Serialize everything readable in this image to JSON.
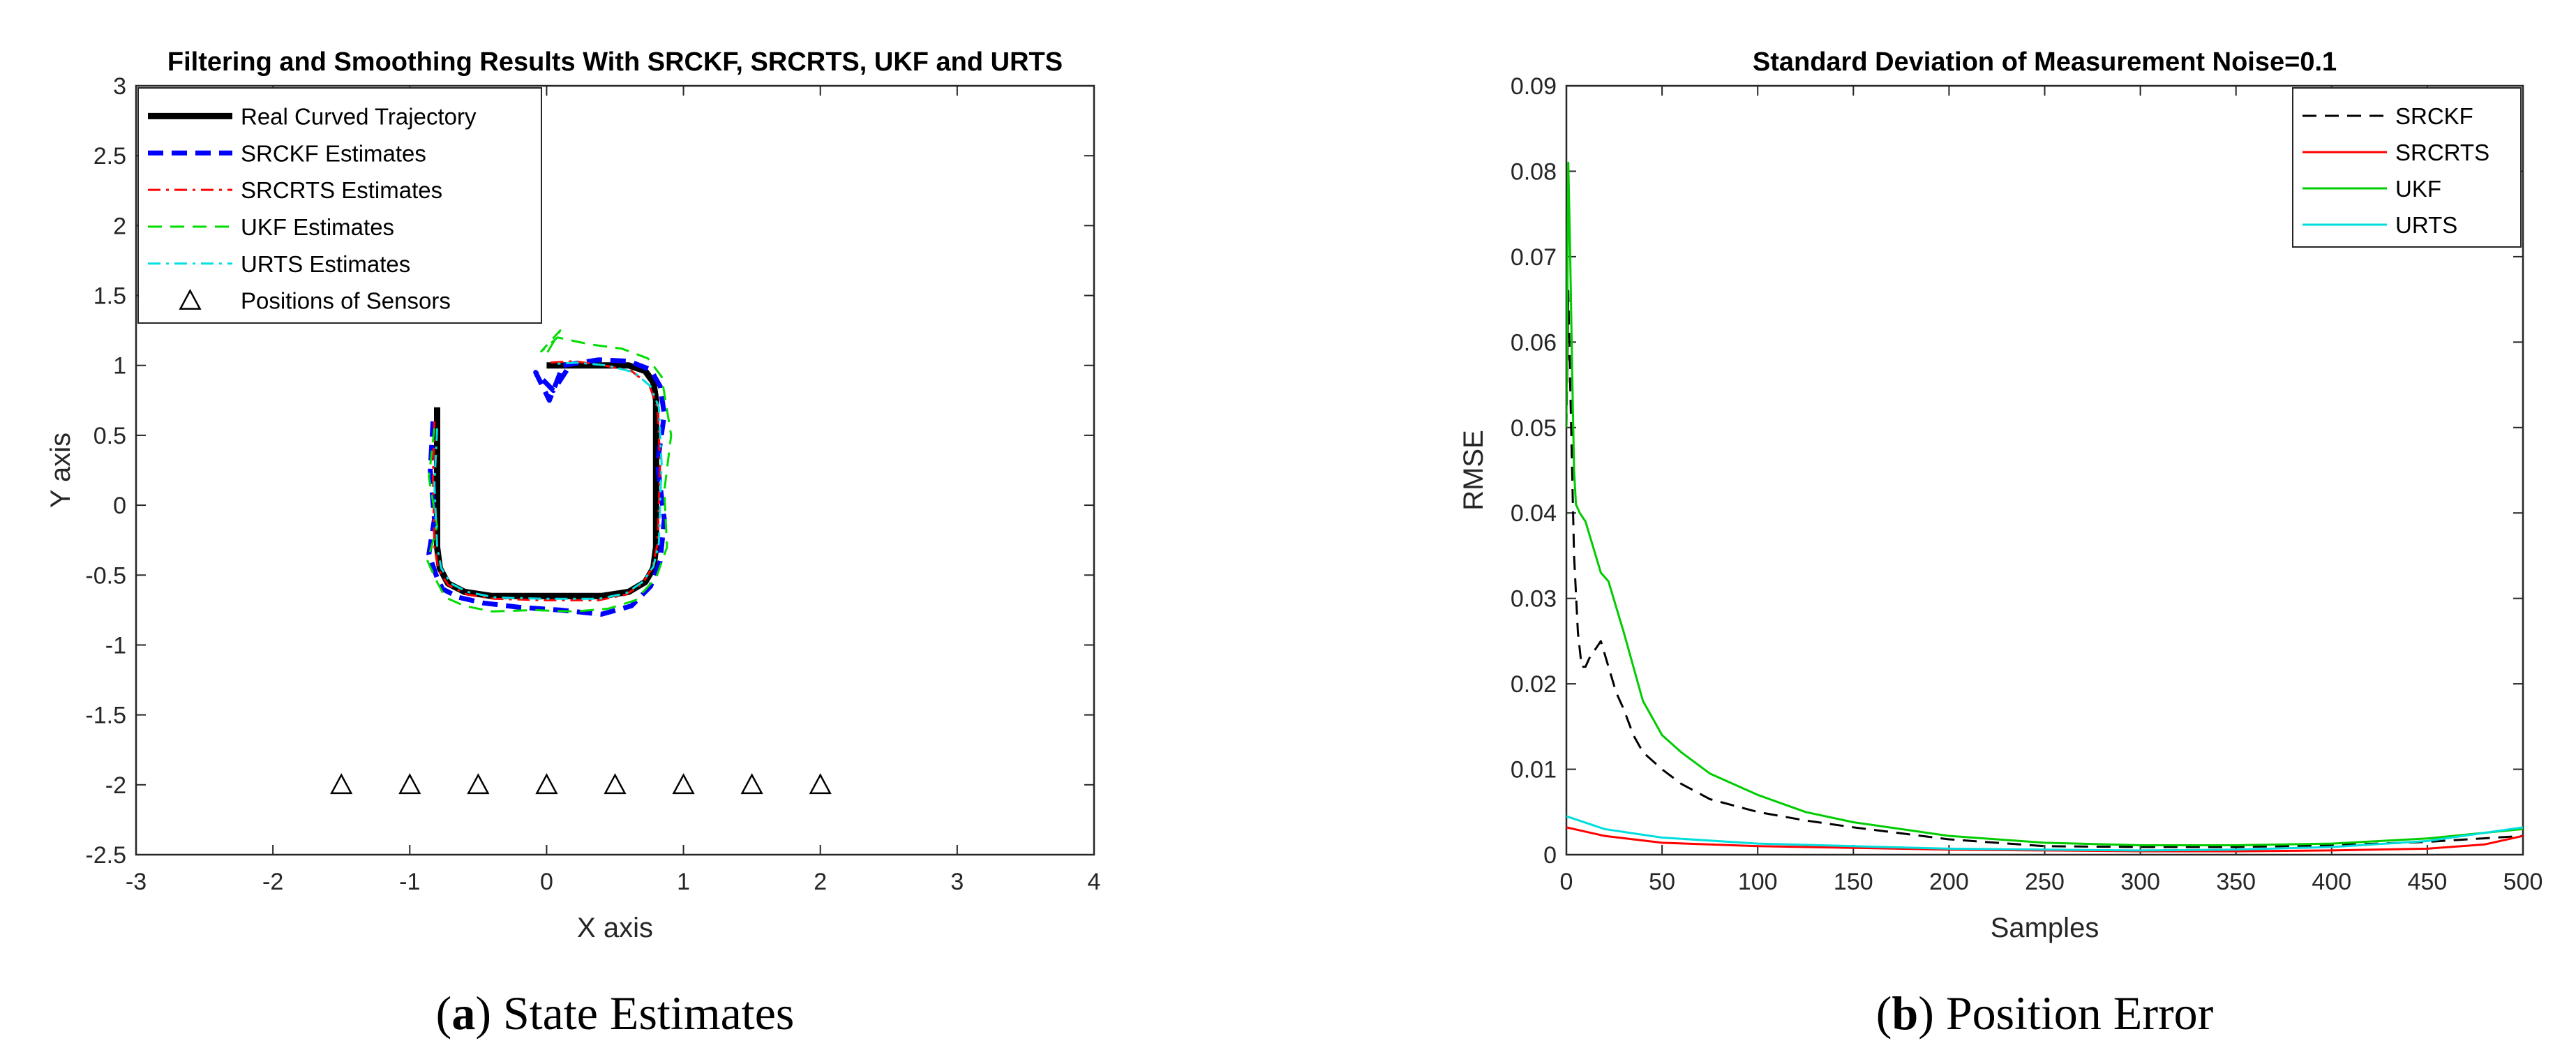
{
  "chart_data": [
    {
      "type": "line",
      "title": "Filtering and Smoothing Results With SRCKF, SRCRTS, UKF and URTS",
      "xlabel": "X axis",
      "ylabel": "Y axis",
      "xlim": [
        -3,
        4
      ],
      "ylim": [
        -2.5,
        3
      ],
      "xticks": [
        -3,
        -2,
        -1,
        0,
        1,
        2,
        3,
        4
      ],
      "yticks": [
        -2.5,
        -2,
        -1.5,
        -1,
        -0.5,
        0,
        0.5,
        1,
        1.5,
        2,
        2.5,
        3
      ],
      "grid": false,
      "legend_position": "top-left",
      "caption_label": "a",
      "caption_text": "State Estimates",
      "series": [
        {
          "name": "Real Curved Trajectory",
          "color": "#000000",
          "style": "solid-thick",
          "x": [
            -0.8,
            -0.8,
            -0.8,
            -0.78,
            -0.72,
            -0.6,
            -0.4,
            0,
            0.4,
            0.6,
            0.72,
            0.78,
            0.8,
            0.8,
            0.8,
            0.78,
            0.72,
            0.6,
            0.3,
            0
          ],
          "y": [
            0.7,
            0.3,
            -0.3,
            -0.45,
            -0.56,
            -0.62,
            -0.65,
            -0.65,
            -0.65,
            -0.62,
            -0.55,
            -0.45,
            -0.3,
            0.3,
            0.75,
            0.88,
            0.96,
            1.0,
            1.0,
            1.0
          ]
        },
        {
          "name": "SRCKF Estimates",
          "color": "#0000ff",
          "style": "dashed-thick",
          "x": [
            -0.83,
            -0.85,
            -0.82,
            -0.86,
            -0.8,
            -0.76,
            -0.64,
            -0.46,
            -0.2,
            0.1,
            0.4,
            0.62,
            0.76,
            0.83,
            0.86,
            0.81,
            0.86,
            0.83,
            0.76,
            0.6,
            0.38,
            0.12,
            0.02,
            -0.08,
            0.05,
            0.15
          ],
          "y": [
            0.6,
            0.25,
            -0.1,
            -0.35,
            -0.52,
            -0.6,
            -0.66,
            -0.7,
            -0.73,
            -0.75,
            -0.78,
            -0.72,
            -0.58,
            -0.4,
            -0.1,
            0.3,
            0.65,
            0.85,
            0.97,
            1.03,
            1.04,
            1.0,
            0.75,
            0.95,
            0.82,
            0.97
          ]
        },
        {
          "name": "SRCRTS Estimates",
          "color": "#ff0000",
          "style": "dashdot",
          "x": [
            -0.82,
            -0.83,
            -0.82,
            -0.79,
            -0.72,
            -0.58,
            -0.38,
            0,
            0.38,
            0.58,
            0.7,
            0.77,
            0.81,
            0.83,
            0.81,
            0.75,
            0.62,
            0.42,
            0.2,
            0.02
          ],
          "y": [
            0.6,
            0.2,
            -0.3,
            -0.46,
            -0.57,
            -0.64,
            -0.67,
            -0.68,
            -0.68,
            -0.64,
            -0.56,
            -0.45,
            -0.28,
            0.3,
            0.7,
            0.86,
            0.96,
            1.0,
            1.03,
            1.02
          ]
        },
        {
          "name": "UKF Estimates",
          "color": "#00dd00",
          "style": "dashed",
          "x": [
            -0.82,
            -0.86,
            -0.8,
            -0.87,
            -0.8,
            -0.74,
            -0.6,
            -0.4,
            -0.1,
            0.2,
            0.45,
            0.65,
            0.8,
            0.88,
            0.86,
            0.91,
            0.86,
            0.84,
            0.74,
            0.55,
            0.32,
            0.08,
            -0.04,
            0.1,
            -0.02
          ],
          "y": [
            0.55,
            0.2,
            -0.15,
            -0.4,
            -0.55,
            -0.66,
            -0.72,
            -0.76,
            -0.75,
            -0.76,
            -0.74,
            -0.68,
            -0.52,
            -0.3,
            0.1,
            0.5,
            0.8,
            0.92,
            1.05,
            1.12,
            1.15,
            1.2,
            1.1,
            1.25,
            1.05
          ]
        },
        {
          "name": "URTS Estimates",
          "color": "#00e0e0",
          "style": "dashdot",
          "x": [
            -0.8,
            -0.82,
            -0.8,
            -0.77,
            -0.7,
            -0.58,
            -0.38,
            0,
            0.38,
            0.58,
            0.7,
            0.78,
            0.82,
            0.84,
            0.82,
            0.76,
            0.64,
            0.44,
            0.22,
            0.04
          ],
          "y": [
            0.55,
            0.15,
            -0.3,
            -0.45,
            -0.56,
            -0.62,
            -0.66,
            -0.67,
            -0.67,
            -0.63,
            -0.55,
            -0.44,
            -0.27,
            0.3,
            0.7,
            0.85,
            0.95,
            1.0,
            1.02,
            1.01
          ]
        },
        {
          "name": "Positions of Sensors",
          "color": "#000000",
          "style": "triangle-markers",
          "x": [
            -1.5,
            -1,
            -0.5,
            0,
            0.5,
            1,
            1.5,
            2
          ],
          "y": [
            -2,
            -2,
            -2,
            -2,
            -2,
            -2,
            -2,
            -2
          ]
        }
      ]
    },
    {
      "type": "line",
      "title": "Standard Deviation of Measurement Noise=0.1",
      "xlabel": "Samples",
      "ylabel": "RMSE",
      "xlim": [
        0,
        500
      ],
      "ylim": [
        0,
        0.09
      ],
      "xticks": [
        0,
        50,
        100,
        150,
        200,
        250,
        300,
        350,
        400,
        450,
        500
      ],
      "yticks": [
        0,
        0.01,
        0.02,
        0.03,
        0.04,
        0.05,
        0.06,
        0.07,
        0.08,
        0.09
      ],
      "grid": false,
      "legend_position": "top-right",
      "caption_label": "b",
      "caption_text": "Position Error",
      "series": [
        {
          "name": "SRCKF",
          "color": "#000000",
          "style": "dashed",
          "x": [
            0,
            1,
            2,
            3,
            4,
            6,
            8,
            10,
            12,
            15,
            18,
            22,
            26,
            30,
            35,
            40,
            50,
            60,
            75,
            100,
            125,
            150,
            200,
            250,
            300,
            350,
            400,
            450,
            500
          ],
          "y": [
            0.05,
            0.066,
            0.055,
            0.045,
            0.035,
            0.026,
            0.022,
            0.022,
            0.023,
            0.024,
            0.025,
            0.022,
            0.019,
            0.017,
            0.014,
            0.012,
            0.01,
            0.0083,
            0.0065,
            0.005,
            0.004,
            0.0032,
            0.0018,
            0.001,
            0.0009,
            0.0009,
            0.0011,
            0.0015,
            0.0022
          ]
        },
        {
          "name": "SRCRTS",
          "color": "#ff0000",
          "style": "solid",
          "x": [
            0,
            20,
            50,
            100,
            150,
            200,
            250,
            300,
            350,
            400,
            450,
            480,
            500
          ],
          "y": [
            0.0032,
            0.0022,
            0.0014,
            0.001,
            0.0008,
            0.0006,
            0.0005,
            0.0004,
            0.0004,
            0.0005,
            0.0007,
            0.0012,
            0.0022
          ]
        },
        {
          "name": "UKF",
          "color": "#00cc00",
          "style": "solid",
          "x": [
            0,
            1,
            2,
            3,
            4,
            5,
            7,
            10,
            14,
            18,
            22,
            26,
            30,
            35,
            40,
            50,
            60,
            75,
            100,
            125,
            150,
            200,
            250,
            300,
            350,
            400,
            450,
            500
          ],
          "y": [
            0.05,
            0.081,
            0.07,
            0.057,
            0.045,
            0.041,
            0.04,
            0.039,
            0.036,
            0.033,
            0.032,
            0.029,
            0.026,
            0.022,
            0.018,
            0.014,
            0.012,
            0.0095,
            0.007,
            0.005,
            0.0038,
            0.0022,
            0.0014,
            0.0011,
            0.0011,
            0.0013,
            0.0019,
            0.003
          ]
        },
        {
          "name": "URTS",
          "color": "#00dddd",
          "style": "solid",
          "x": [
            0,
            20,
            50,
            100,
            150,
            200,
            250,
            300,
            350,
            400,
            450,
            500
          ],
          "y": [
            0.0045,
            0.003,
            0.002,
            0.0013,
            0.001,
            0.0007,
            0.0006,
            0.0005,
            0.0006,
            0.0009,
            0.0016,
            0.0032
          ]
        }
      ]
    }
  ]
}
